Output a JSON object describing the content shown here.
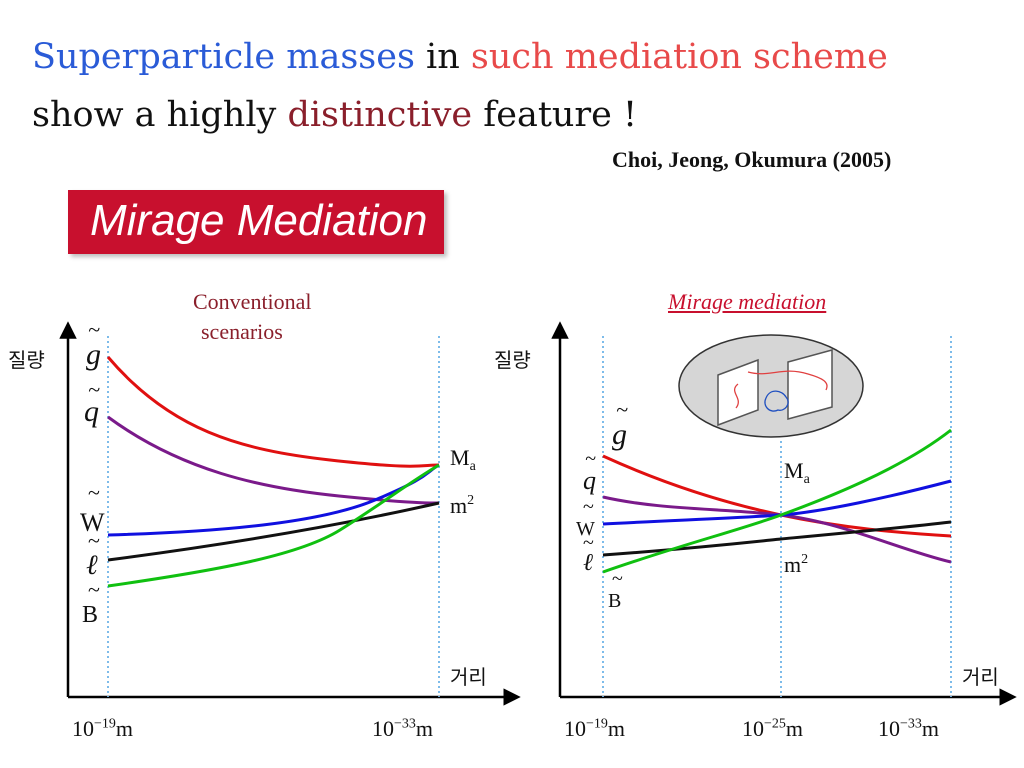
{
  "title": {
    "line1": [
      {
        "text": "Superparticle masses",
        "color": "#2a5bd7"
      },
      {
        "text": " in ",
        "color": "#111111"
      },
      {
        "text": "such mediation scheme",
        "color": "#e84a4a"
      }
    ],
    "line2": [
      {
        "text": "show a highly ",
        "color": "#111111"
      },
      {
        "text": "distinctive",
        "color": "#8a1f2b"
      },
      {
        "text": " feature !",
        "color": "#111111"
      }
    ]
  },
  "citation": "Choi, Jeong, Okumura (2005)",
  "banner": {
    "text": "Mirage Mediation",
    "color": "#c8102e"
  },
  "left_panel": {
    "caption_line1": "Conventional",
    "caption_line2": "scenarios",
    "y_axis_label": "질량",
    "x_axis_label": "거리",
    "x_ticks": [
      {
        "base": "10",
        "exp": "−19",
        "unit": "m"
      },
      {
        "base": "10",
        "exp": "−33",
        "unit": "m"
      }
    ],
    "labels": {
      "gluino": "g",
      "squark": "q",
      "wino": "W",
      "slepton": "ℓ",
      "bino": "B",
      "tilde": "~"
    },
    "end_labels": {
      "gaugino": {
        "base": "M",
        "sub": "a"
      },
      "scalar": {
        "base": "m",
        "sup": "2"
      }
    }
  },
  "right_panel": {
    "caption": "Mirage mediation",
    "y_axis_label": "질량",
    "x_axis_label": "거리",
    "x_ticks": [
      {
        "base": "10",
        "exp": "−19",
        "unit": "m"
      },
      {
        "base": "10",
        "exp": "−25",
        "unit": "m"
      },
      {
        "base": "10",
        "exp": "−33",
        "unit": "m"
      }
    ],
    "labels": {
      "gluino": "g",
      "squark": "q",
      "wino": "W",
      "slepton": "ℓ",
      "bino": "B",
      "tilde": "~"
    },
    "mid_labels": {
      "gaugino": {
        "base": "M",
        "sub": "a"
      },
      "scalar": {
        "base": "m",
        "sup": "2"
      }
    }
  },
  "curve_colors": {
    "gluino": "#e01010",
    "squark": "#7a1a8a",
    "wino": "#1010e0",
    "slepton": "#111111",
    "bino": "#10c010",
    "guides": "#6fb4e8"
  }
}
